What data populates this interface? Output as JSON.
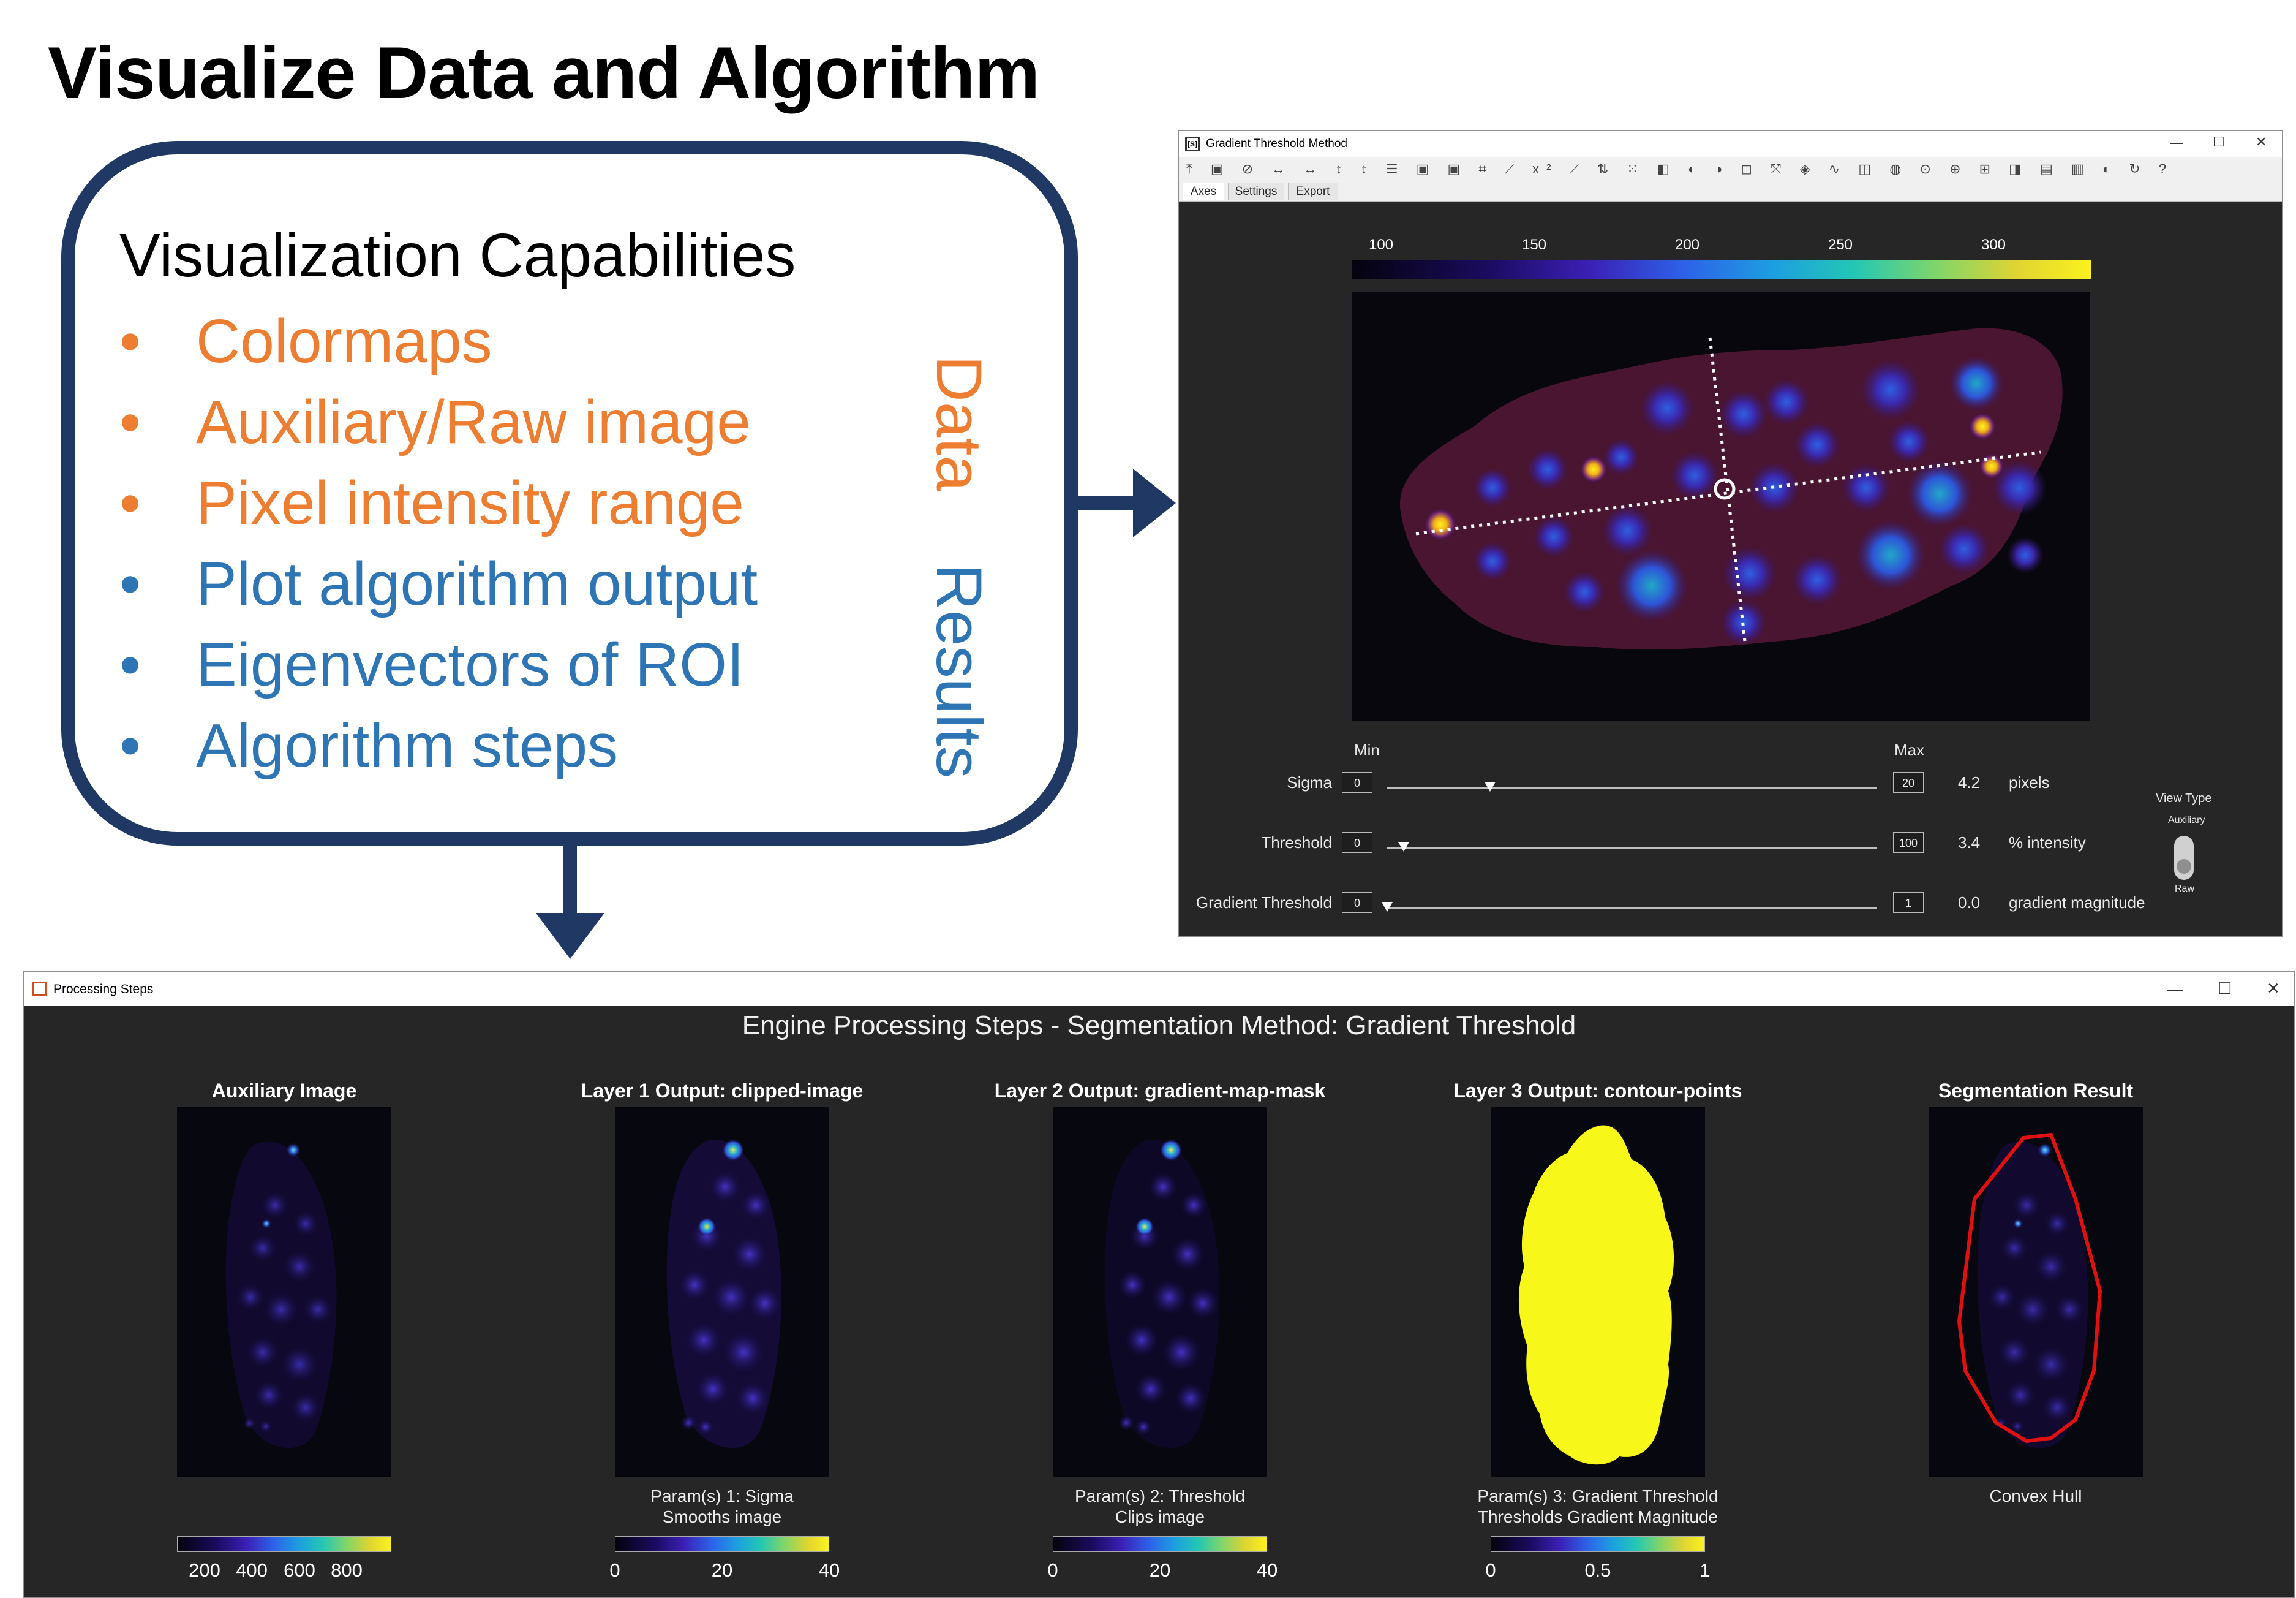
{
  "slide": {
    "title": "Visualize Data and Algorithm",
    "box_title": "Visualization Capabilities",
    "data_items": [
      "Colormaps",
      "Auxiliary/Raw image",
      "Pixel intensity range"
    ],
    "results_items": [
      "Plot algorithm output",
      "Eigenvectors of ROI",
      "Algorithm steps"
    ],
    "data_label": "Data",
    "results_label": "Results",
    "bullet": "•",
    "colors": {
      "accent_dark": "#1f3864",
      "orange": "#ed7d31",
      "blue": "#2e75b6"
    }
  },
  "window1": {
    "title": "Gradient Threshold Method",
    "app_icon": "[S]",
    "toolbar_icons": "⤒ ▣ ⊘ ↔ ↔ ↕ ↕ ☰ ▣ ▣ ⌗ ⟋ x² ⟋ ⇅ ⁙ ◧ ◐ ◑ ◻ ⤧ ◈ ∿ ◫ ◍ ⊙ ⊕ ⊞ ◨ ▤ ▥ ◐ ↻ ?",
    "tabs": [
      "Axes",
      "Settings",
      "Export"
    ],
    "colorbar_ticks": [
      "100",
      "150",
      "200",
      "250",
      "300"
    ],
    "min_label": "Min",
    "max_label": "Max",
    "sliders": [
      {
        "label": "Sigma",
        "min": "0",
        "max": "20",
        "value": "4.2",
        "unit": "pixels",
        "fraction": 0.21
      },
      {
        "label": "Threshold",
        "min": "0",
        "max": "100",
        "value": "3.4",
        "unit": "% intensity",
        "fraction": 0.034
      },
      {
        "label": "Gradient Threshold",
        "min": "0",
        "max": "1",
        "value": "0.0",
        "unit": "gradient magnitude",
        "fraction": 0.0
      }
    ],
    "view_type": {
      "label": "View Type",
      "top": "Auxiliary",
      "bottom": "Raw",
      "selected": "Raw"
    }
  },
  "window2": {
    "title": "Processing Steps",
    "heading": "Engine Processing Steps - Segmentation Method: Gradient Threshold",
    "panels": [
      {
        "title": "Auxiliary Image",
        "caption": [
          "",
          ""
        ],
        "ticks": [
          "200",
          "400",
          "600",
          "800"
        ]
      },
      {
        "title": "Layer 1 Output: clipped-image",
        "caption": [
          "Param(s) 1: Sigma",
          "Smooths image"
        ],
        "ticks": [
          "0",
          "20",
          "40"
        ]
      },
      {
        "title": "Layer 2 Output: gradient-map-mask",
        "caption": [
          "Param(s) 2: Threshold",
          "Clips image"
        ],
        "ticks": [
          "0",
          "20",
          "40"
        ]
      },
      {
        "title": "Layer 3 Output: contour-points",
        "caption": [
          "Param(s) 3: Gradient Threshold",
          "Thresholds Gradient Magnitude"
        ],
        "ticks": [
          "0",
          "0.5",
          "1"
        ]
      },
      {
        "title": "Segmentation Result",
        "caption": [
          "Convex Hull",
          ""
        ],
        "ticks": []
      }
    ]
  },
  "window_controls": {
    "minimize": "—",
    "maximize": "☐",
    "close": "✕"
  }
}
